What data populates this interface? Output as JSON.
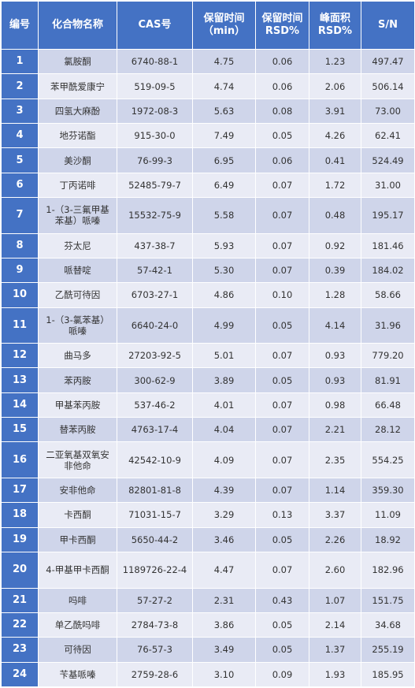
{
  "header": [
    "编号",
    "化合物名称",
    "CAS号",
    "保留时间\n（min）",
    "保留时间\nRSD%",
    "峰面积\nRSD%",
    "S/N"
  ],
  "rows": [
    [
      "1",
      "氯胺酮",
      "6740-88-1",
      "4.75",
      "0.06",
      "1.23",
      "497.47"
    ],
    [
      "2",
      "苯甲酰爱康宁",
      "519-09-5",
      "4.74",
      "0.06",
      "2.06",
      "506.14"
    ],
    [
      "3",
      "四氢大麻酚",
      "1972-08-3",
      "5.63",
      "0.08",
      "3.91",
      "73.00"
    ],
    [
      "4",
      "地芬诺酯",
      "915-30-0",
      "7.49",
      "0.05",
      "4.26",
      "62.41"
    ],
    [
      "5",
      "美沙酮",
      "76-99-3",
      "6.95",
      "0.06",
      "0.41",
      "524.49"
    ],
    [
      "6",
      "丁丙诺啡",
      "52485-79-7",
      "6.49",
      "0.07",
      "1.72",
      "31.00"
    ],
    [
      "7",
      "1-（3-三氟甲基苯基）哌嗪",
      "15532-75-9",
      "5.58",
      "0.07",
      "0.48",
      "195.17"
    ],
    [
      "8",
      "芬太尼",
      "437-38-7",
      "5.93",
      "0.07",
      "0.92",
      "181.46"
    ],
    [
      "9",
      "哌替啶",
      "57-42-1",
      "5.30",
      "0.07",
      "0.39",
      "184.02"
    ],
    [
      "10",
      "乙酰可待因",
      "6703-27-1",
      "4.86",
      "0.10",
      "1.28",
      "58.66"
    ],
    [
      "11",
      "1-（3-氯苯基）哌嗪",
      "6640-24-0",
      "4.99",
      "0.05",
      "4.14",
      "31.96"
    ],
    [
      "12",
      "曲马多",
      "27203-92-5",
      "5.01",
      "0.07",
      "0.93",
      "779.20"
    ],
    [
      "13",
      "苯丙胺",
      "300-62-9",
      "3.89",
      "0.05",
      "0.93",
      "81.91"
    ],
    [
      "14",
      "甲基苯丙胺",
      "537-46-2",
      "4.01",
      "0.07",
      "0.98",
      "66.48"
    ],
    [
      "15",
      "替苯丙胺",
      "4763-17-4",
      "4.04",
      "0.07",
      "2.21",
      "28.12"
    ],
    [
      "16",
      "二亚氧基双氧安非他命",
      "42542-10-9",
      "4.09",
      "0.07",
      "2.35",
      "554.25"
    ],
    [
      "17",
      "安非他命",
      "82801-81-8",
      "4.39",
      "0.07",
      "1.14",
      "359.30"
    ],
    [
      "18",
      "卡西酮",
      "71031-15-7",
      "3.29",
      "0.13",
      "3.37",
      "11.09"
    ],
    [
      "19",
      "甲卡西酮",
      "5650-44-2",
      "3.46",
      "0.05",
      "2.26",
      "18.92"
    ],
    [
      "20",
      "4-甲基甲卡西酮",
      "1189726-22-4",
      "4.47",
      "0.07",
      "2.60",
      "182.96"
    ],
    [
      "21",
      "吗啡",
      "57-27-2",
      "2.31",
      "0.43",
      "1.07",
      "151.75"
    ],
    [
      "22",
      "单乙酰吗啡",
      "2784-73-8",
      "3.86",
      "0.05",
      "2.14",
      "34.68"
    ],
    [
      "23",
      "可待因",
      "76-57-3",
      "3.49",
      "0.05",
      "1.37",
      "255.19"
    ],
    [
      "24",
      "苄基哌嗪",
      "2759-28-6",
      "3.10",
      "0.09",
      "1.93",
      "185.95"
    ]
  ]
}
